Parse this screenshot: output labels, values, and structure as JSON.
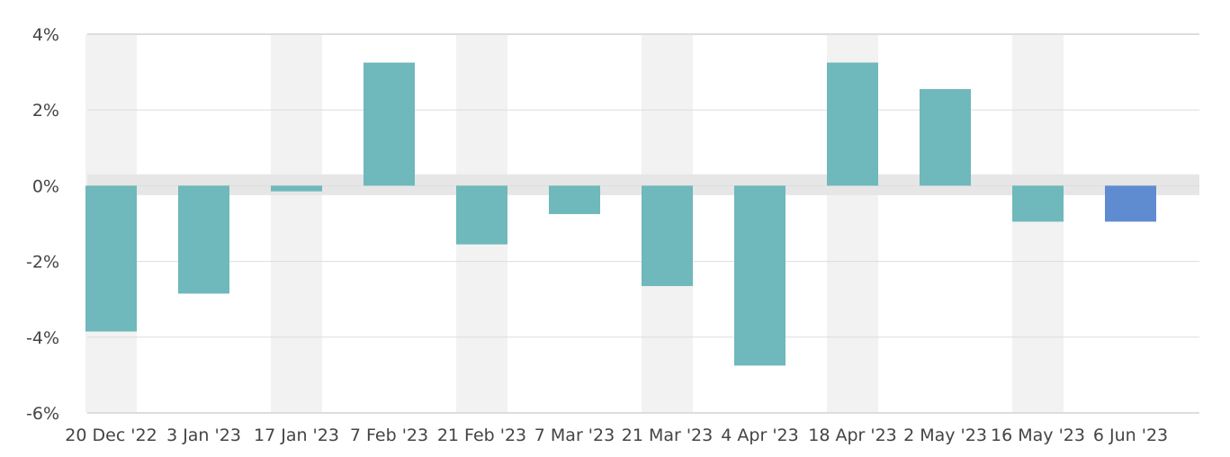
{
  "chart_data": {
    "type": "bar",
    "title": "",
    "xlabel": "",
    "ylabel": "",
    "categories": [
      "20 Dec '22",
      "3 Jan '23",
      "17 Jan '23",
      "7 Feb '23",
      "21 Feb '23",
      "7 Mar '23",
      "21 Mar '23",
      "4 Apr '23",
      "18 Apr '23",
      "2 May '23",
      "16 May '23",
      "6 Jun '23"
    ],
    "values": [
      -3.85,
      -2.85,
      -0.15,
      3.25,
      -1.55,
      -0.75,
      -2.65,
      -4.75,
      3.25,
      2.55,
      -0.95,
      -0.95
    ],
    "ylim": [
      -6,
      4
    ],
    "yticks": [
      4,
      2,
      0,
      -2,
      -4,
      -6
    ],
    "ytick_labels": [
      "4%",
      "2%",
      "0%",
      "-2%",
      "-4%",
      "-6%"
    ],
    "grid": true,
    "legend": "none",
    "colors": {
      "bar": "#6fb8bb",
      "highlight_bar": "#5f8bd0",
      "band": "#f2f2f2",
      "zero_band": "#e6e6e6",
      "axis": "#dddddd"
    },
    "highlight_index": 11
  }
}
